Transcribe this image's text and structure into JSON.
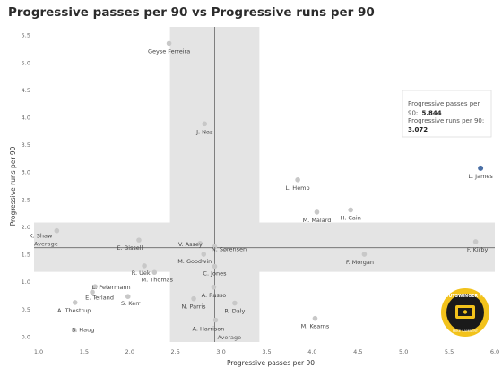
{
  "title": "Progressive passes per 90 vs Progressive runs per 90",
  "chart_data": {
    "type": "scatter",
    "title": "Progressive passes per 90 vs Progressive runs per 90",
    "xlabel": "Progressive passes per 90",
    "ylabel": "Progressive runs per 90",
    "xlim": [
      1.0,
      6.0
    ],
    "ylim": [
      -0.1,
      5.65
    ],
    "xticks": [
      "1.0",
      "1.5",
      "2.0",
      "2.5",
      "3.0",
      "3.5",
      "4.0",
      "4.5",
      "5.0",
      "5.5",
      "6.0"
    ],
    "yticks": [
      "0.0",
      "0.5",
      "1.0",
      "1.5",
      "2.0",
      "2.5",
      "3.0",
      "3.5",
      "4.0",
      "4.5",
      "5.0",
      "5.5"
    ],
    "grid": false,
    "average_x": 2.93,
    "average_y": 1.62,
    "average_label": "Average",
    "x_band": [
      2.44,
      3.42
    ],
    "y_band": [
      1.18,
      2.08
    ],
    "highlight_color": "#4a6fa5",
    "point_color": "#c8c8c8",
    "points": [
      {
        "name": "Geyse Ferreira",
        "x": 2.43,
        "y": 5.35
      },
      {
        "name": "J. Naz",
        "x": 2.82,
        "y": 3.88
      },
      {
        "name": "L. Hemp",
        "x": 3.84,
        "y": 2.86
      },
      {
        "name": "L. James",
        "x": 5.844,
        "y": 3.072,
        "highlight": true
      },
      {
        "name": "M. Malard",
        "x": 4.05,
        "y": 2.27
      },
      {
        "name": "H. Cain",
        "x": 4.42,
        "y": 2.31
      },
      {
        "name": "K. Shaw",
        "x": 1.2,
        "y": 1.93
      },
      {
        "name": "E. Bissell",
        "x": 2.1,
        "y": 1.76
      },
      {
        "name": "V. Asseyi",
        "x": 2.77,
        "y": 1.7
      },
      {
        "name": "N. Sørensen",
        "x": 2.93,
        "y": 1.64
      },
      {
        "name": "F. Kirby",
        "x": 5.79,
        "y": 1.73
      },
      {
        "name": "M. Goodwin",
        "x": 2.81,
        "y": 1.5
      },
      {
        "name": "F. Morgan",
        "x": 4.57,
        "y": 1.5
      },
      {
        "name": "R. Ueki",
        "x": 2.16,
        "y": 1.29
      },
      {
        "name": "M. Thomas",
        "x": 2.27,
        "y": 1.17
      },
      {
        "name": "C. Jones",
        "x": 2.93,
        "y": 1.28
      },
      {
        "name": "L. Petermann",
        "x": 1.62,
        "y": 0.91
      },
      {
        "name": "E. Terland",
        "x": 1.59,
        "y": 0.81
      },
      {
        "name": "S. Kerr",
        "x": 1.98,
        "y": 0.73
      },
      {
        "name": "A. Russo",
        "x": 2.92,
        "y": 0.9
      },
      {
        "name": "A. Thestrup",
        "x": 1.4,
        "y": 0.62
      },
      {
        "name": "N. Parris",
        "x": 2.7,
        "y": 0.69
      },
      {
        "name": "R. Daly",
        "x": 3.15,
        "y": 0.61
      },
      {
        "name": "S. Haug",
        "x": 1.39,
        "y": 0.12
      },
      {
        "name": "A. Harrison",
        "x": 2.94,
        "y": 0.3
      },
      {
        "name": "M. Kearns",
        "x": 4.03,
        "y": 0.33
      }
    ],
    "tooltip": {
      "line1": "Progressive passes per",
      "line2_prefix": "90:",
      "line2_value": "5.844",
      "line3": "Progressive runs per 90:",
      "line4_value": "3.072"
    }
  },
  "logo": {
    "text_top": "OUTSWINGER FC",
    "text_bottom": "MIKE LAMBERT"
  }
}
